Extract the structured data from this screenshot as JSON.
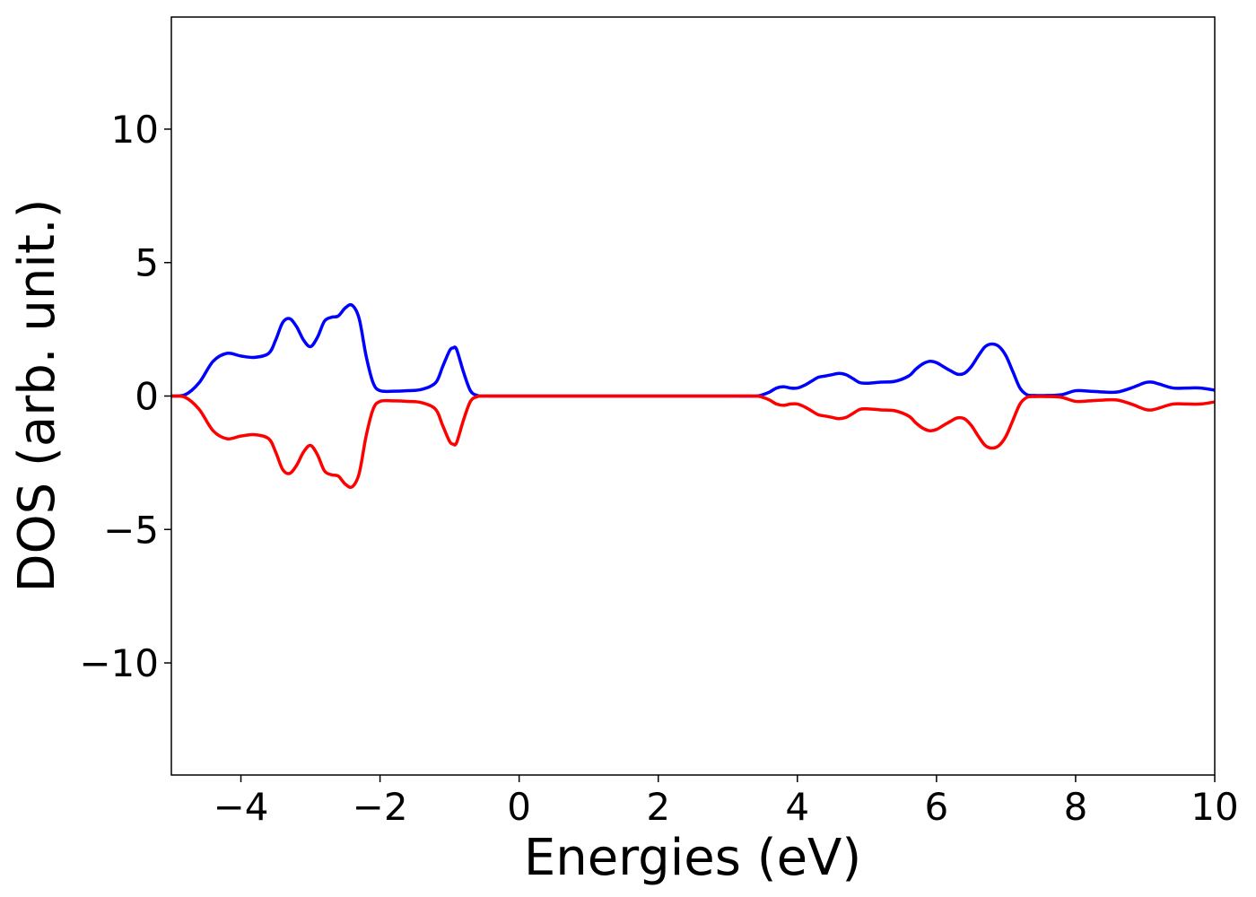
{
  "chart_data": {
    "type": "line",
    "title": "",
    "xlabel": "Energies (eV)",
    "ylabel": "DOS (arb. unit.)",
    "xlim": [
      -5,
      10
    ],
    "ylim": [
      -14.2,
      14.2
    ],
    "grid": false,
    "x_ticks": [
      -4,
      -2,
      0,
      2,
      4,
      6,
      8,
      10
    ],
    "x_tick_labels": [
      "−4",
      "−2",
      "0",
      "2",
      "4",
      "6",
      "8",
      "10"
    ],
    "y_ticks": [
      -10,
      -5,
      0,
      5,
      10
    ],
    "y_tick_labels": [
      "−10",
      "−5",
      "0",
      "5",
      "10"
    ],
    "series": [
      {
        "color": "#0000ff",
        "x": [
          -5.0,
          -4.8,
          -4.6,
          -4.4,
          -4.2,
          -4.0,
          -3.8,
          -3.6,
          -3.5,
          -3.4,
          -3.3,
          -3.2,
          -3.1,
          -3.0,
          -2.9,
          -2.8,
          -2.7,
          -2.6,
          -2.5,
          -2.4,
          -2.3,
          -2.2,
          -2.1,
          -2.0,
          -1.8,
          -1.6,
          -1.4,
          -1.2,
          -1.1,
          -1.0,
          -0.95,
          -0.9,
          -0.8,
          -0.7,
          -0.6,
          -0.5,
          0.0,
          1.0,
          2.0,
          3.0,
          3.4,
          3.5,
          3.6,
          3.7,
          3.8,
          3.9,
          4.0,
          4.1,
          4.2,
          4.3,
          4.4,
          4.5,
          4.6,
          4.7,
          4.8,
          4.9,
          5.0,
          5.2,
          5.4,
          5.6,
          5.7,
          5.8,
          5.9,
          6.0,
          6.1,
          6.2,
          6.3,
          6.4,
          6.5,
          6.6,
          6.7,
          6.8,
          6.9,
          7.0,
          7.1,
          7.2,
          7.3,
          7.4,
          7.6,
          7.8,
          8.0,
          8.2,
          8.4,
          8.6,
          8.8,
          9.0,
          9.1,
          9.2,
          9.4,
          9.6,
          9.8,
          10.0
        ],
        "y": [
          0.0,
          0.05,
          0.5,
          1.3,
          1.6,
          1.5,
          1.45,
          1.6,
          2.1,
          2.75,
          2.9,
          2.6,
          2.1,
          1.85,
          2.2,
          2.8,
          2.95,
          3.0,
          3.3,
          3.4,
          2.9,
          1.5,
          0.5,
          0.2,
          0.18,
          0.2,
          0.25,
          0.5,
          1.1,
          1.7,
          1.8,
          1.75,
          0.9,
          0.2,
          0.02,
          0.0,
          0.0,
          0.0,
          0.0,
          0.0,
          0.0,
          0.05,
          0.15,
          0.3,
          0.35,
          0.3,
          0.3,
          0.4,
          0.55,
          0.7,
          0.75,
          0.8,
          0.85,
          0.8,
          0.65,
          0.5,
          0.48,
          0.52,
          0.55,
          0.75,
          1.0,
          1.2,
          1.3,
          1.25,
          1.1,
          0.95,
          0.82,
          0.85,
          1.1,
          1.5,
          1.85,
          1.95,
          1.85,
          1.5,
          0.9,
          0.3,
          0.05,
          0.02,
          0.02,
          0.05,
          0.2,
          0.18,
          0.15,
          0.15,
          0.3,
          0.5,
          0.52,
          0.45,
          0.3,
          0.3,
          0.3,
          0.22
        ]
      },
      {
        "color": "#ff0000",
        "x": [
          -5.0,
          -4.8,
          -4.6,
          -4.4,
          -4.2,
          -4.0,
          -3.8,
          -3.6,
          -3.5,
          -3.4,
          -3.3,
          -3.2,
          -3.1,
          -3.0,
          -2.9,
          -2.8,
          -2.7,
          -2.6,
          -2.5,
          -2.4,
          -2.3,
          -2.2,
          -2.1,
          -2.0,
          -1.8,
          -1.6,
          -1.4,
          -1.2,
          -1.1,
          -1.0,
          -0.95,
          -0.9,
          -0.8,
          -0.7,
          -0.6,
          -0.5,
          0.0,
          1.0,
          2.0,
          3.0,
          3.4,
          3.5,
          3.6,
          3.7,
          3.8,
          3.9,
          4.0,
          4.1,
          4.2,
          4.3,
          4.4,
          4.5,
          4.6,
          4.7,
          4.8,
          4.9,
          5.0,
          5.2,
          5.4,
          5.6,
          5.7,
          5.8,
          5.9,
          6.0,
          6.1,
          6.2,
          6.3,
          6.4,
          6.5,
          6.6,
          6.7,
          6.8,
          6.9,
          7.0,
          7.1,
          7.2,
          7.3,
          7.4,
          7.6,
          7.8,
          8.0,
          8.2,
          8.4,
          8.6,
          8.8,
          9.0,
          9.1,
          9.2,
          9.4,
          9.6,
          9.8,
          10.0
        ],
        "y": [
          0.0,
          -0.05,
          -0.5,
          -1.3,
          -1.6,
          -1.5,
          -1.45,
          -1.6,
          -2.1,
          -2.75,
          -2.9,
          -2.6,
          -2.1,
          -1.85,
          -2.2,
          -2.8,
          -2.95,
          -3.0,
          -3.3,
          -3.4,
          -2.9,
          -1.5,
          -0.5,
          -0.2,
          -0.18,
          -0.2,
          -0.25,
          -0.5,
          -1.1,
          -1.7,
          -1.8,
          -1.75,
          -0.9,
          -0.2,
          -0.02,
          0.0,
          0.0,
          0.0,
          0.0,
          0.0,
          0.0,
          -0.05,
          -0.15,
          -0.3,
          -0.35,
          -0.3,
          -0.3,
          -0.4,
          -0.55,
          -0.7,
          -0.75,
          -0.8,
          -0.85,
          -0.8,
          -0.65,
          -0.5,
          -0.48,
          -0.52,
          -0.55,
          -0.75,
          -1.0,
          -1.2,
          -1.3,
          -1.25,
          -1.1,
          -0.95,
          -0.82,
          -0.85,
          -1.1,
          -1.5,
          -1.85,
          -1.95,
          -1.85,
          -1.5,
          -0.9,
          -0.3,
          -0.05,
          -0.02,
          -0.02,
          -0.05,
          -0.2,
          -0.18,
          -0.15,
          -0.15,
          -0.3,
          -0.5,
          -0.52,
          -0.45,
          -0.3,
          -0.3,
          -0.3,
          -0.22
        ]
      }
    ]
  }
}
